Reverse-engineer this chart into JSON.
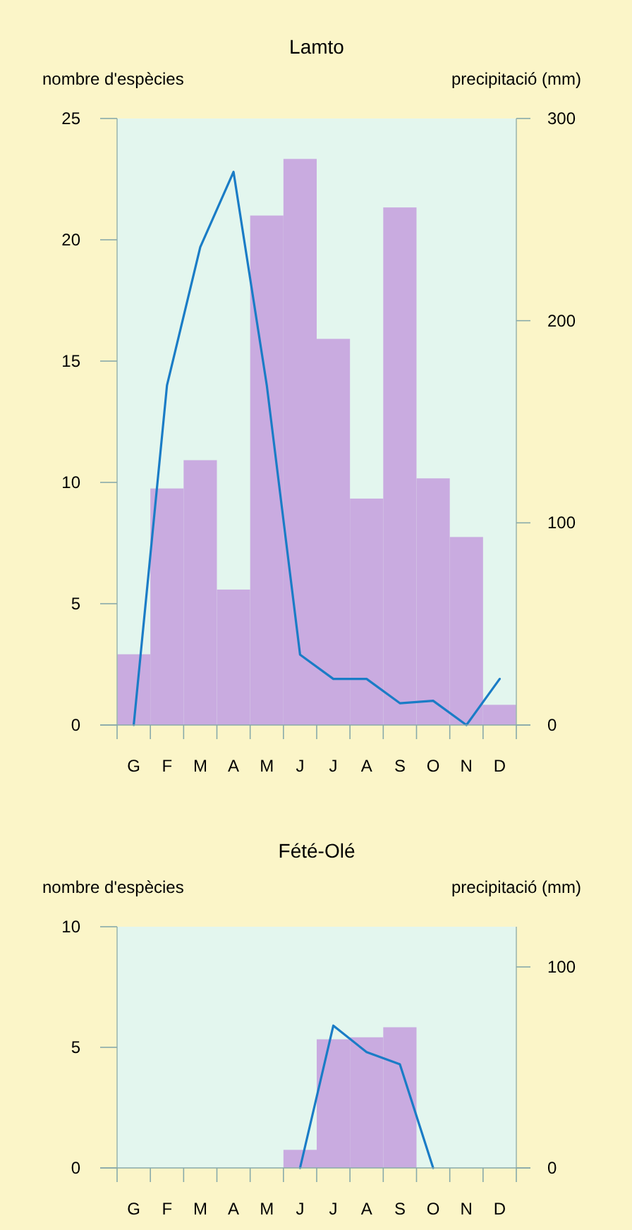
{
  "chart_data": [
    {
      "type": "bar",
      "title": "Lamto",
      "ylabel": "nombre d'espècies",
      "y2label": "precipitació (mm)",
      "categories": [
        "G",
        "F",
        "M",
        "A",
        "M",
        "J",
        "J",
        "A",
        "S",
        "O",
        "N",
        "D"
      ],
      "ylim": [
        0,
        25
      ],
      "yticks": [
        0,
        5,
        10,
        15,
        20,
        25
      ],
      "y2lim": [
        0,
        300
      ],
      "y2ticks": [
        0,
        100,
        200,
        300
      ],
      "series": [
        {
          "axis": "y2",
          "color": "#c9abe0",
          "values": [
            35,
            117,
            131,
            67,
            252,
            280,
            191,
            112,
            256,
            122,
            93,
            10
          ]
        },
        {
          "type": "line",
          "axis": "y",
          "color": "#1a7cc6",
          "values": [
            0,
            14,
            19.7,
            22.8,
            14,
            2.9,
            1.9,
            1.9,
            0.9,
            1,
            0,
            1.9
          ]
        }
      ]
    },
    {
      "type": "bar",
      "title": "Fété-Olé",
      "ylabel": "nombre d'espècies",
      "y2label": "precipitació (mm)",
      "categories": [
        "G",
        "F",
        "M",
        "A",
        "M",
        "J",
        "J",
        "A",
        "S",
        "O",
        "N",
        "D"
      ],
      "ylim": [
        0,
        10
      ],
      "yticks": [
        0,
        5,
        10
      ],
      "y2lim": [
        0,
        120
      ],
      "y2ticks": [
        0,
        100
      ],
      "series": [
        {
          "axis": "y2",
          "color": "#c9abe0",
          "values": [
            null,
            null,
            null,
            null,
            null,
            9,
            64,
            65,
            70,
            null,
            null,
            null
          ]
        },
        {
          "type": "line",
          "axis": "y",
          "color": "#1a7cc6",
          "values": [
            null,
            null,
            null,
            null,
            null,
            0,
            5.9,
            4.8,
            4.3,
            0,
            null,
            null
          ]
        }
      ]
    }
  ]
}
